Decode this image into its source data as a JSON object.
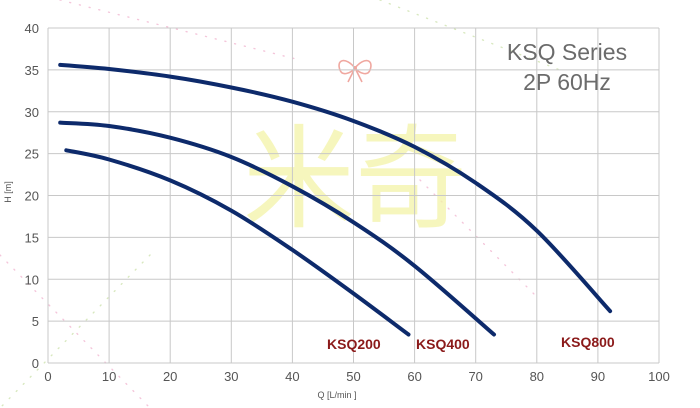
{
  "chart_data": {
    "type": "line",
    "title": "KSQ Series",
    "subtitle": "2P 60Hz",
    "xlabel": "Q [L/min ]",
    "ylabel": "H [m]",
    "xlim": [
      0,
      100
    ],
    "ylim": [
      0,
      40
    ],
    "xticks": [
      "0",
      "10",
      "20",
      "30",
      "40",
      "50",
      "60",
      "70",
      "80",
      "90",
      "100"
    ],
    "yticks": [
      "0",
      "5",
      "10",
      "15",
      "20",
      "25",
      "30",
      "35",
      "40"
    ],
    "grid": true,
    "series": [
      {
        "name": "KSQ200",
        "color": "#0d2a6b",
        "x": [
          3,
          10,
          20,
          30,
          40,
          50,
          59
        ],
        "y": [
          25.4,
          24.3,
          21.8,
          18.2,
          13.5,
          8.3,
          3.4
        ]
      },
      {
        "name": "KSQ400",
        "color": "#0d2a6b",
        "x": [
          2,
          10,
          20,
          30,
          40,
          50,
          60,
          73
        ],
        "y": [
          28.7,
          28.3,
          26.9,
          24.6,
          21.1,
          16.8,
          11.6,
          3.4
        ]
      },
      {
        "name": "KSQ800",
        "color": "#0d2a6b",
        "x": [
          2,
          10,
          20,
          30,
          40,
          50,
          60,
          70,
          80,
          92
        ],
        "y": [
          35.6,
          35.1,
          34.2,
          32.9,
          31.2,
          28.9,
          25.8,
          21.5,
          15.8,
          6.2
        ]
      }
    ]
  },
  "watermark": {
    "text": "米奇",
    "color": "#f3f3a8"
  },
  "colors": {
    "grid": "#c8c8c8",
    "line": "#0d2a6b",
    "label": "#8b1a1a",
    "decor_pink": "#f2b8d2",
    "decor_green": "#cfe3b0"
  }
}
